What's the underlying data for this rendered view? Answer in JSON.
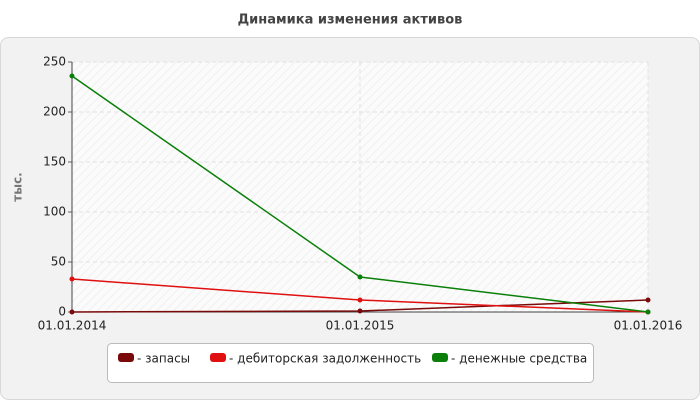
{
  "chart_data": {
    "type": "line",
    "title": "Динамика изменения активов",
    "y_label": "тыс.",
    "categories": [
      "01.01.2014",
      "01.01.2015",
      "01.01.2016"
    ],
    "series": [
      {
        "name": "- запасы",
        "color": "#7a0a0a",
        "values": [
          0,
          1,
          12
        ]
      },
      {
        "name": "- дебиторская задолженность",
        "color": "#e01010",
        "values": [
          33,
          12,
          0
        ]
      },
      {
        "name": "- денежные средства",
        "color": "#0a7f0a",
        "values": [
          236,
          35,
          0
        ]
      }
    ],
    "ylim": [
      0,
      250
    ],
    "yticks": [
      0,
      50,
      100,
      150,
      200,
      250
    ],
    "grid": true
  }
}
